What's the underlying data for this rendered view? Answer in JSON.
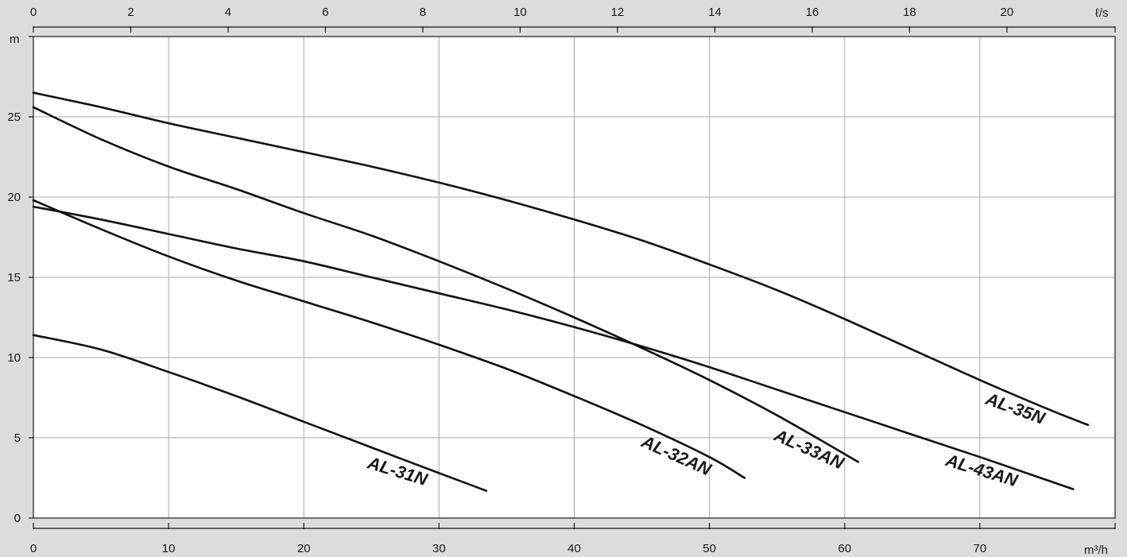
{
  "chart_data": {
    "type": "line",
    "title": "",
    "x_unit": "m³/h",
    "x2_unit": "ℓ/s",
    "y_unit": "m",
    "xlim": [
      0,
      80
    ],
    "x2lim": [
      0,
      22.2222
    ],
    "ylim": [
      0,
      30
    ],
    "x_ticks": [
      0,
      10,
      20,
      30,
      40,
      50,
      60,
      70
    ],
    "x2_ticks": [
      0,
      2,
      4,
      6,
      8,
      10,
      12,
      14,
      16,
      18,
      20
    ],
    "y_ticks": [
      0,
      5,
      10,
      15,
      20,
      25
    ],
    "grid": true,
    "series": [
      {
        "name": "AL-31N",
        "x": [
          0,
          5,
          10,
          15,
          20,
          25,
          30,
          33.5
        ],
        "y": [
          11.4,
          10.5,
          9.1,
          7.6,
          6.0,
          4.4,
          2.8,
          1.7
        ]
      },
      {
        "name": "AL-32AN",
        "x": [
          0,
          5,
          10,
          15,
          20,
          25,
          30,
          35,
          40,
          45,
          50,
          52.6
        ],
        "y": [
          19.8,
          18.0,
          16.3,
          14.8,
          13.5,
          12.2,
          10.8,
          9.3,
          7.6,
          5.8,
          3.8,
          2.5
        ]
      },
      {
        "name": "AL-33AN",
        "x": [
          0,
          5,
          10,
          15,
          20,
          25,
          30,
          35,
          40,
          45,
          50,
          55,
          61
        ],
        "y": [
          25.6,
          23.6,
          21.9,
          20.5,
          19.0,
          17.6,
          16.0,
          14.3,
          12.5,
          10.6,
          8.6,
          6.4,
          3.5
        ]
      },
      {
        "name": "AL-43AN",
        "x": [
          0,
          5,
          10,
          15,
          20,
          25,
          30,
          35,
          40,
          45,
          50,
          55,
          60,
          65,
          70,
          76.9
        ],
        "y": [
          19.4,
          18.6,
          17.7,
          16.8,
          16.0,
          15.0,
          14.0,
          13.0,
          11.9,
          10.7,
          9.4,
          8.0,
          6.6,
          5.2,
          3.8,
          1.8
        ]
      },
      {
        "name": "AL-35N",
        "x": [
          0,
          5,
          10,
          15,
          20,
          25,
          30,
          35,
          40,
          45,
          50,
          55,
          60,
          65,
          70,
          75,
          78
        ],
        "y": [
          26.5,
          25.6,
          24.6,
          23.7,
          22.8,
          21.9,
          20.9,
          19.8,
          18.6,
          17.3,
          15.8,
          14.2,
          12.4,
          10.5,
          8.6,
          6.8,
          5.8
        ]
      }
    ]
  }
}
